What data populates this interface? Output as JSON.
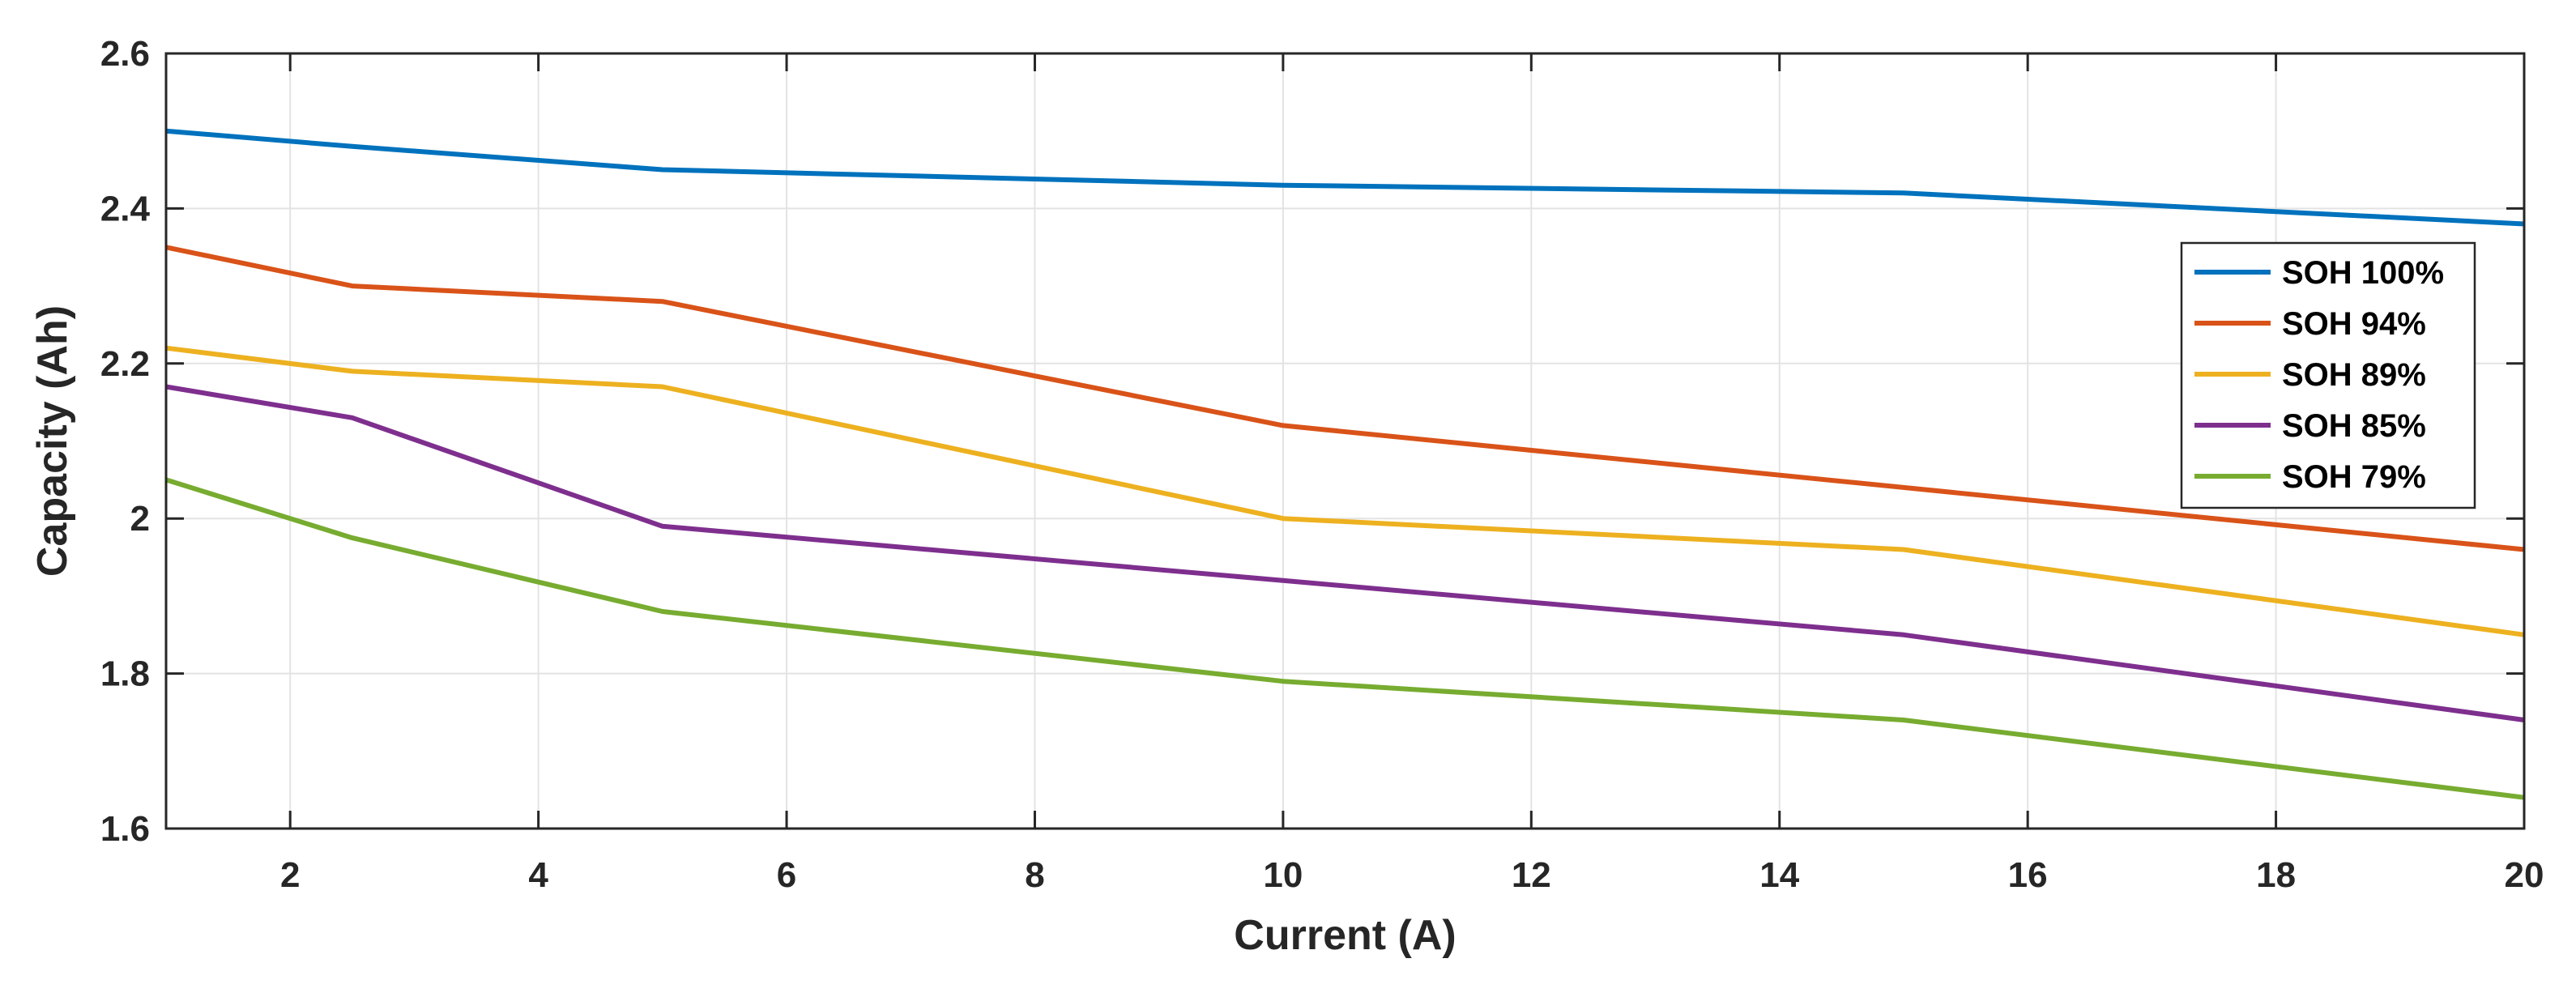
{
  "chart_data": {
    "type": "line",
    "title": "",
    "xlabel": "Current (A)",
    "ylabel": "Capacity (Ah)",
    "xlim": [
      1,
      20
    ],
    "ylim": [
      1.6,
      2.6
    ],
    "xticks": [
      2,
      4,
      6,
      8,
      10,
      12,
      14,
      16,
      18,
      20
    ],
    "yticks": [
      1.6,
      1.8,
      2,
      2.2,
      2.4,
      2.6
    ],
    "xtick_labels": [
      "2",
      "4",
      "6",
      "8",
      "10",
      "12",
      "14",
      "16",
      "18",
      "20"
    ],
    "ytick_labels": [
      "1.6",
      "1.8",
      "2",
      "2.2",
      "2.4",
      "2.6"
    ],
    "grid": true,
    "legend_position": "right",
    "x": [
      1,
      2.5,
      5,
      10,
      15,
      20
    ],
    "series": [
      {
        "name": "SOH 100%",
        "color": "#0072BD",
        "values": [
          2.5,
          2.48,
          2.45,
          2.43,
          2.42,
          2.38
        ]
      },
      {
        "name": "SOH 94%",
        "color": "#D95319",
        "values": [
          2.35,
          2.3,
          2.28,
          2.12,
          2.04,
          1.96
        ]
      },
      {
        "name": "SOH 89%",
        "color": "#EDB120",
        "values": [
          2.22,
          2.19,
          2.17,
          2.0,
          1.96,
          1.85
        ]
      },
      {
        "name": "SOH 85%",
        "color": "#7E2F8E",
        "values": [
          2.17,
          2.13,
          1.99,
          1.92,
          1.85,
          1.74
        ]
      },
      {
        "name": "SOH 79%",
        "color": "#77AC30",
        "values": [
          2.05,
          1.975,
          1.88,
          1.79,
          1.74,
          1.64
        ]
      }
    ]
  }
}
